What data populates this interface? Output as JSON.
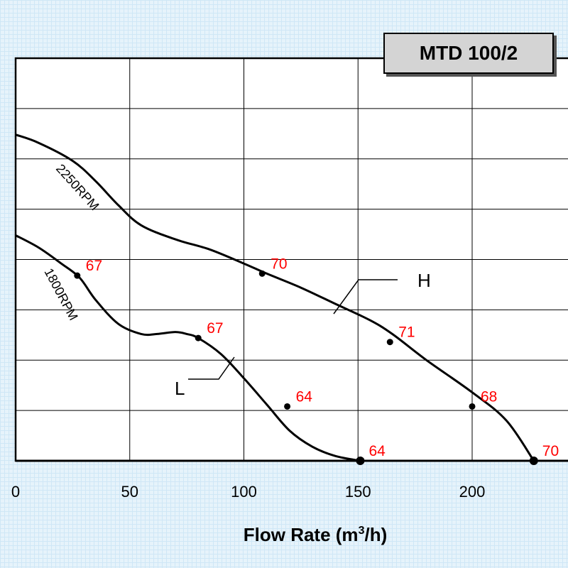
{
  "model_label": "MTD 100/2",
  "chart_data": {
    "type": "line",
    "xlabel_main": "Flow Rate (m",
    "xlabel_sup": "3",
    "xlabel_end": "/h)",
    "xlim": [
      0,
      240
    ],
    "x_ticks": [
      0,
      50,
      100,
      150,
      200
    ],
    "grid": true,
    "series": [
      {
        "name": "2250RPM",
        "tag": "H",
        "x": [
          0,
          10,
          25,
          35,
          45,
          55,
          70,
          85,
          100,
          110,
          125,
          140,
          155,
          165,
          180,
          200,
          215,
          227
        ],
        "y": [
          0.81,
          0.79,
          0.745,
          0.695,
          0.635,
          0.585,
          0.55,
          0.525,
          0.49,
          0.465,
          0.43,
          0.39,
          0.35,
          0.315,
          0.25,
          0.17,
          0.1,
          0.0
        ]
      },
      {
        "name": "1800RPM",
        "tag": "L",
        "x": [
          0,
          10,
          20,
          28,
          35,
          45,
          55,
          62,
          70,
          75,
          80,
          90,
          100,
          110,
          120,
          130,
          140,
          151
        ],
        "y": [
          0.56,
          0.53,
          0.49,
          0.455,
          0.4,
          0.34,
          0.315,
          0.315,
          0.32,
          0.315,
          0.305,
          0.265,
          0.205,
          0.14,
          0.075,
          0.035,
          0.012,
          0.0
        ]
      }
    ],
    "efficiency_points": [
      {
        "curve": "1800RPM",
        "x": 27,
        "y": 0.46,
        "label": "67"
      },
      {
        "curve": "1800RPM",
        "x": 80,
        "y": 0.305,
        "label": "67"
      },
      {
        "curve": "1800RPM",
        "x": 119,
        "y": 0.135,
        "label": "64"
      },
      {
        "curve": "1800RPM",
        "x": 151,
        "y": 0.0,
        "label": "64"
      },
      {
        "curve": "2250RPM",
        "x": 108,
        "y": 0.465,
        "label": "70"
      },
      {
        "curve": "2250RPM",
        "x": 164,
        "y": 0.295,
        "label": "71"
      },
      {
        "curve": "2250RPM",
        "x": 200,
        "y": 0.135,
        "label": "68"
      },
      {
        "curve": "2250RPM",
        "x": 227,
        "y": 0.0,
        "label": "70"
      }
    ],
    "curve_tags": [
      "H",
      "L"
    ]
  }
}
